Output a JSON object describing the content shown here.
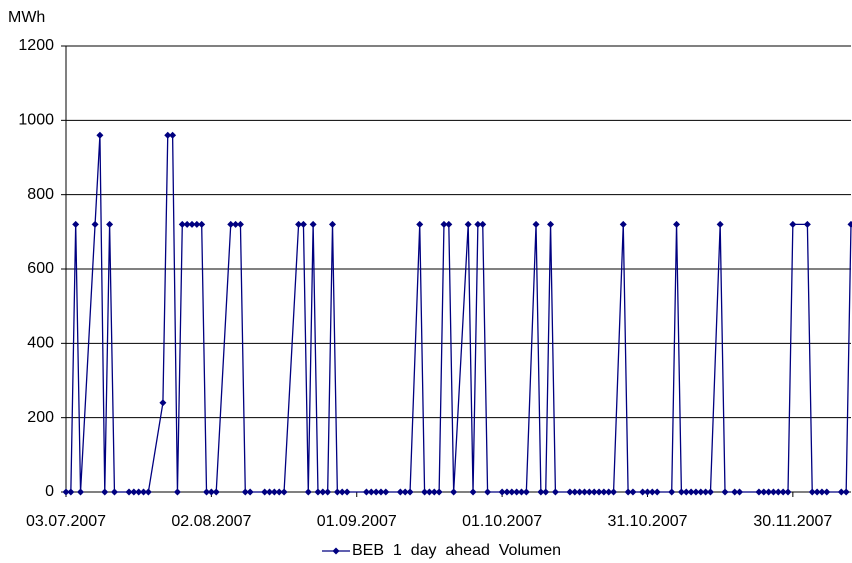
{
  "chart_data": {
    "type": "line",
    "y_axis_label": "MWh",
    "x": [
      "03.07.2007",
      "04.07.2007",
      "05.07.2007",
      "06.07.2007",
      "09.07.2007",
      "10.07.2007",
      "11.07.2007",
      "12.07.2007",
      "13.07.2007",
      "16.07.2007",
      "17.07.2007",
      "18.07.2007",
      "19.07.2007",
      "20.07.2007",
      "23.07.2007",
      "24.07.2007",
      "25.07.2007",
      "26.07.2007",
      "27.07.2007",
      "28.07.2007",
      "29.07.2007",
      "30.07.2007",
      "31.07.2007",
      "01.08.2007",
      "02.08.2007",
      "03.08.2007",
      "06.08.2007",
      "07.08.2007",
      "08.08.2007",
      "09.08.2007",
      "10.08.2007",
      "13.08.2007",
      "14.08.2007",
      "15.08.2007",
      "16.08.2007",
      "17.08.2007",
      "20.08.2007",
      "21.08.2007",
      "22.08.2007",
      "23.08.2007",
      "24.08.2007",
      "25.08.2007",
      "26.08.2007",
      "27.08.2007",
      "28.08.2007",
      "29.08.2007",
      "30.08.2007",
      "03.09.2007",
      "04.09.2007",
      "05.09.2007",
      "06.09.2007",
      "07.09.2007",
      "10.09.2007",
      "11.09.2007",
      "12.09.2007",
      "14.09.2007",
      "15.09.2007",
      "16.09.2007",
      "17.09.2007",
      "18.09.2007",
      "19.09.2007",
      "20.09.2007",
      "21.09.2007",
      "24.09.2007",
      "25.09.2007",
      "26.09.2007",
      "27.09.2007",
      "28.09.2007",
      "01.10.2007",
      "02.10.2007",
      "03.10.2007",
      "04.10.2007",
      "05.10.2007",
      "06.10.2007",
      "08.10.2007",
      "09.10.2007",
      "10.10.2007",
      "11.10.2007",
      "12.10.2007",
      "15.10.2007",
      "16.10.2007",
      "17.10.2007",
      "18.10.2007",
      "19.10.2007",
      "20.10.2007",
      "21.10.2007",
      "22.10.2007",
      "23.10.2007",
      "24.10.2007",
      "26.10.2007",
      "27.10.2007",
      "28.10.2007",
      "30.10.2007",
      "31.10.2007",
      "01.11.2007",
      "02.11.2007",
      "05.11.2007",
      "06.11.2007",
      "07.11.2007",
      "08.11.2007",
      "09.11.2007",
      "10.11.2007",
      "11.11.2007",
      "12.11.2007",
      "13.11.2007",
      "15.11.2007",
      "16.11.2007",
      "18.11.2007",
      "19.11.2007",
      "23.11.2007",
      "24.11.2007",
      "25.11.2007",
      "26.11.2007",
      "27.11.2007",
      "28.11.2007",
      "29.11.2007",
      "30.11.2007",
      "03.12.2007",
      "04.12.2007",
      "05.12.2007",
      "06.12.2007",
      "07.12.2007",
      "10.12.2007",
      "11.12.2007",
      "12.12.2007"
    ],
    "series": [
      {
        "name": "BEB  1  day  ahead  Volumen",
        "color": "#000080",
        "values": [
          0,
          0,
          720,
          0,
          720,
          960,
          0,
          720,
          0,
          0,
          0,
          0,
          0,
          0,
          240,
          960,
          960,
          0,
          720,
          720,
          720,
          720,
          720,
          0,
          0,
          0,
          720,
          720,
          720,
          0,
          0,
          0,
          0,
          0,
          0,
          0,
          720,
          720,
          0,
          720,
          0,
          0,
          0,
          720,
          0,
          0,
          0,
          0,
          0,
          0,
          0,
          0,
          0,
          0,
          0,
          720,
          0,
          0,
          0,
          0,
          720,
          720,
          0,
          720,
          0,
          720,
          720,
          0,
          0,
          0,
          0,
          0,
          0,
          0,
          720,
          0,
          0,
          720,
          0,
          0,
          0,
          0,
          0,
          0,
          0,
          0,
          0,
          0,
          0,
          720,
          0,
          0,
          0,
          0,
          0,
          0,
          0,
          720,
          0,
          0,
          0,
          0,
          0,
          0,
          0,
          720,
          0,
          0,
          0,
          0,
          0,
          0,
          0,
          0,
          0,
          0,
          720,
          720,
          0,
          0,
          0,
          0,
          0,
          0,
          720
        ]
      }
    ],
    "xlim": [
      "03.07.2007",
      "12.12.2007"
    ],
    "xticks": [
      "03.07.2007",
      "02.08.2007",
      "01.09.2007",
      "01.10.2007",
      "31.10.2007",
      "30.11.2007"
    ],
    "ylim": [
      0,
      1200
    ],
    "yticks": [
      0,
      200,
      400,
      600,
      800,
      1000,
      1200
    ],
    "grid": true,
    "legend": "bottom"
  }
}
